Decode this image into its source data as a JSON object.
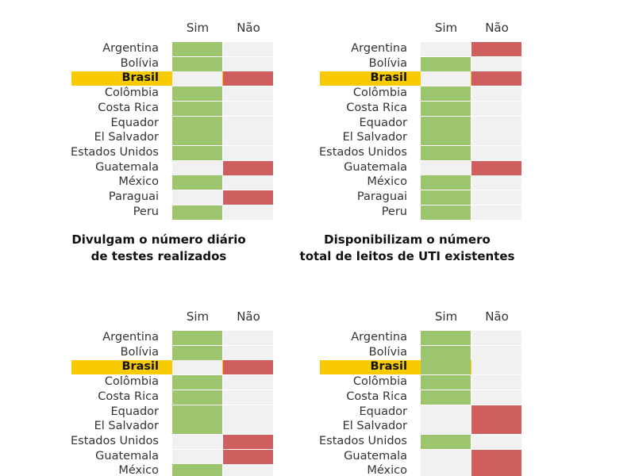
{
  "colors": {
    "sim": "#9dc56e",
    "nao": "#cf5f5f",
    "empty": "#f1f1f1",
    "highlight": "#f7cb00"
  },
  "column_labels": {
    "sim": "Sim",
    "nao": "Não"
  },
  "highlight_country": "Brasil",
  "chart_data": [
    {
      "type": "table",
      "title": "",
      "categories": [
        "Sim",
        "Não"
      ],
      "rows": [
        {
          "country": "Argentina",
          "value": "Sim"
        },
        {
          "country": "Bolívia",
          "value": "Sim"
        },
        {
          "country": "Brasil",
          "value": "Não"
        },
        {
          "country": "Colômbia",
          "value": "Sim"
        },
        {
          "country": "Costa Rica",
          "value": "Sim"
        },
        {
          "country": "Equador",
          "value": "Sim"
        },
        {
          "country": "El Salvador",
          "value": "Sim"
        },
        {
          "country": "Estados Unidos",
          "value": "Sim"
        },
        {
          "country": "Guatemala",
          "value": "Não"
        },
        {
          "country": "México",
          "value": "Sim"
        },
        {
          "country": "Paraguai",
          "value": "Não"
        },
        {
          "country": "Peru",
          "value": "Sim"
        }
      ]
    },
    {
      "type": "table",
      "title": "",
      "categories": [
        "Sim",
        "Não"
      ],
      "rows": [
        {
          "country": "Argentina",
          "value": "Não"
        },
        {
          "country": "Bolívia",
          "value": "Sim"
        },
        {
          "country": "Brasil",
          "value": "Não"
        },
        {
          "country": "Colômbia",
          "value": "Sim"
        },
        {
          "country": "Costa Rica",
          "value": "Sim"
        },
        {
          "country": "Equador",
          "value": "Sim"
        },
        {
          "country": "El Salvador",
          "value": "Sim"
        },
        {
          "country": "Estados Unidos",
          "value": "Sim"
        },
        {
          "country": "Guatemala",
          "value": "Não"
        },
        {
          "country": "México",
          "value": "Sim"
        },
        {
          "country": "Paraguai",
          "value": "Sim"
        },
        {
          "country": "Peru",
          "value": "Sim"
        }
      ]
    },
    {
      "type": "table",
      "title": "Divulgam o número diário\nde testes realizados",
      "categories": [
        "Sim",
        "Não"
      ],
      "rows": [
        {
          "country": "Argentina",
          "value": "Sim"
        },
        {
          "country": "Bolívia",
          "value": "Sim"
        },
        {
          "country": "Brasil",
          "value": "Não"
        },
        {
          "country": "Colômbia",
          "value": "Sim"
        },
        {
          "country": "Costa Rica",
          "value": "Sim"
        },
        {
          "country": "Equador",
          "value": "Sim"
        },
        {
          "country": "El Salvador",
          "value": "Sim"
        },
        {
          "country": "Estados Unidos",
          "value": "Não"
        },
        {
          "country": "Guatemala",
          "value": "Não"
        },
        {
          "country": "México",
          "value": "Sim"
        }
      ]
    },
    {
      "type": "table",
      "title": "Disponibilizam o número\ntotal de leitos de UTI existentes",
      "categories": [
        "Sim",
        "Não"
      ],
      "rows": [
        {
          "country": "Argentina",
          "value": "Sim"
        },
        {
          "country": "Bolívia",
          "value": "Sim"
        },
        {
          "country": "Brasil",
          "value": "Sim"
        },
        {
          "country": "Colômbia",
          "value": "Sim"
        },
        {
          "country": "Costa Rica",
          "value": "Sim"
        },
        {
          "country": "Equador",
          "value": "Não"
        },
        {
          "country": "El Salvador",
          "value": "Não"
        },
        {
          "country": "Estados Unidos",
          "value": "Sim"
        },
        {
          "country": "Guatemala",
          "value": "Não"
        },
        {
          "country": "México",
          "value": "Não"
        }
      ]
    }
  ]
}
